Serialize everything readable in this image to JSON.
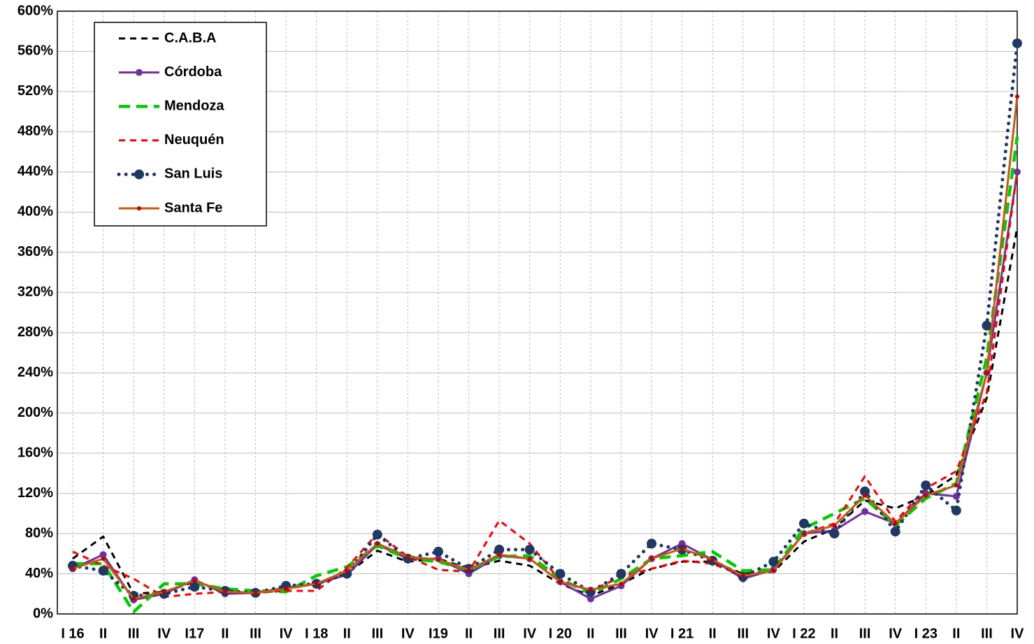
{
  "chart_data": {
    "type": "line",
    "categories": [
      "I 16",
      "II",
      "III",
      "IV",
      "I17",
      "II",
      "III",
      "IV",
      "I 18",
      "II",
      "III",
      "IV",
      "I19",
      "II",
      "III",
      "IV",
      "I 20",
      "II",
      "III",
      "IV",
      "I 21",
      "II",
      "III",
      "IV",
      "I 22",
      "II",
      "III",
      "IV",
      "I 23",
      "II",
      "III",
      "IV"
    ],
    "ylim": [
      0,
      600
    ],
    "yticks": [
      {
        "value": 0,
        "label": "0%"
      },
      {
        "value": 40,
        "label": "40%"
      },
      {
        "value": 80,
        "label": "80%"
      },
      {
        "value": 120,
        "label": "120%"
      },
      {
        "value": 160,
        "label": "160%"
      },
      {
        "value": 200,
        "label": "200%"
      },
      {
        "value": 240,
        "label": "240%"
      },
      {
        "value": 280,
        "label": "280%"
      },
      {
        "value": 320,
        "label": "320%"
      },
      {
        "value": 360,
        "label": "360%"
      },
      {
        "value": 400,
        "label": "400%"
      },
      {
        "value": 440,
        "label": "440%"
      },
      {
        "value": 480,
        "label": "480%"
      },
      {
        "value": 520,
        "label": "520%"
      },
      {
        "value": 560,
        "label": "560%"
      },
      {
        "value": 600,
        "label": "600%"
      }
    ],
    "grid": true,
    "legend": "upper left",
    "series": [
      {
        "name": "C.A.B.A",
        "color": "#000000",
        "line_style": "dashed",
        "marker": "none",
        "values": [
          55,
          77,
          20,
          22,
          32,
          22,
          21,
          25,
          30,
          40,
          63,
          52,
          55,
          45,
          53,
          48,
          30,
          18,
          30,
          45,
          52,
          52,
          40,
          42,
          72,
          85,
          113,
          105,
          118,
          138,
          215,
          385
        ]
      },
      {
        "name": "Córdoba",
        "color": "#7030a0",
        "line_style": "solid",
        "marker": "circle",
        "values": [
          45,
          59,
          14,
          20,
          34,
          20,
          21,
          26,
          30,
          39,
          69,
          55,
          55,
          40,
          58,
          55,
          32,
          15,
          28,
          55,
          70,
          54,
          35,
          44,
          80,
          83,
          102,
          90,
          120,
          117,
          240,
          440
        ]
      },
      {
        "name": "Mendoza",
        "color": "#00cc00",
        "line_style": "long-dashed",
        "marker": "none",
        "values": [
          50,
          50,
          2,
          30,
          30,
          25,
          23,
          22,
          38,
          47,
          68,
          55,
          52,
          44,
          57,
          58,
          35,
          20,
          35,
          55,
          58,
          62,
          43,
          44,
          85,
          100,
          115,
          88,
          115,
          130,
          255,
          475
        ]
      },
      {
        "name": "Neuquén",
        "color": "#ff0000",
        "line_style": "dashed",
        "marker": "none",
        "values": [
          62,
          48,
          35,
          17,
          20,
          22,
          21,
          23,
          23,
          46,
          80,
          57,
          44,
          42,
          93,
          70,
          33,
          23,
          37,
          45,
          53,
          50,
          38,
          43,
          80,
          90,
          137,
          92,
          125,
          142,
          220,
          440
        ]
      },
      {
        "name": "San Luis",
        "color": "#1f3864",
        "line_style": "dotted",
        "marker": "large-circle",
        "values": [
          48,
          43,
          18,
          20,
          27,
          23,
          21,
          28,
          30,
          40,
          79,
          55,
          62,
          45,
          64,
          64,
          40,
          22,
          40,
          70,
          64,
          53,
          37,
          52,
          90,
          80,
          122,
          82,
          128,
          103,
          287,
          568
        ]
      },
      {
        "name": "Santa Fe",
        "color": "#c55a11",
        "line_style": "solid",
        "marker": "small-dot",
        "values": [
          45,
          55,
          15,
          22,
          33,
          22,
          21,
          25,
          30,
          43,
          70,
          57,
          54,
          44,
          59,
          55,
          32,
          24,
          30,
          55,
          65,
          54,
          38,
          43,
          80,
          88,
          118,
          90,
          118,
          128,
          240,
          515
        ]
      }
    ]
  }
}
